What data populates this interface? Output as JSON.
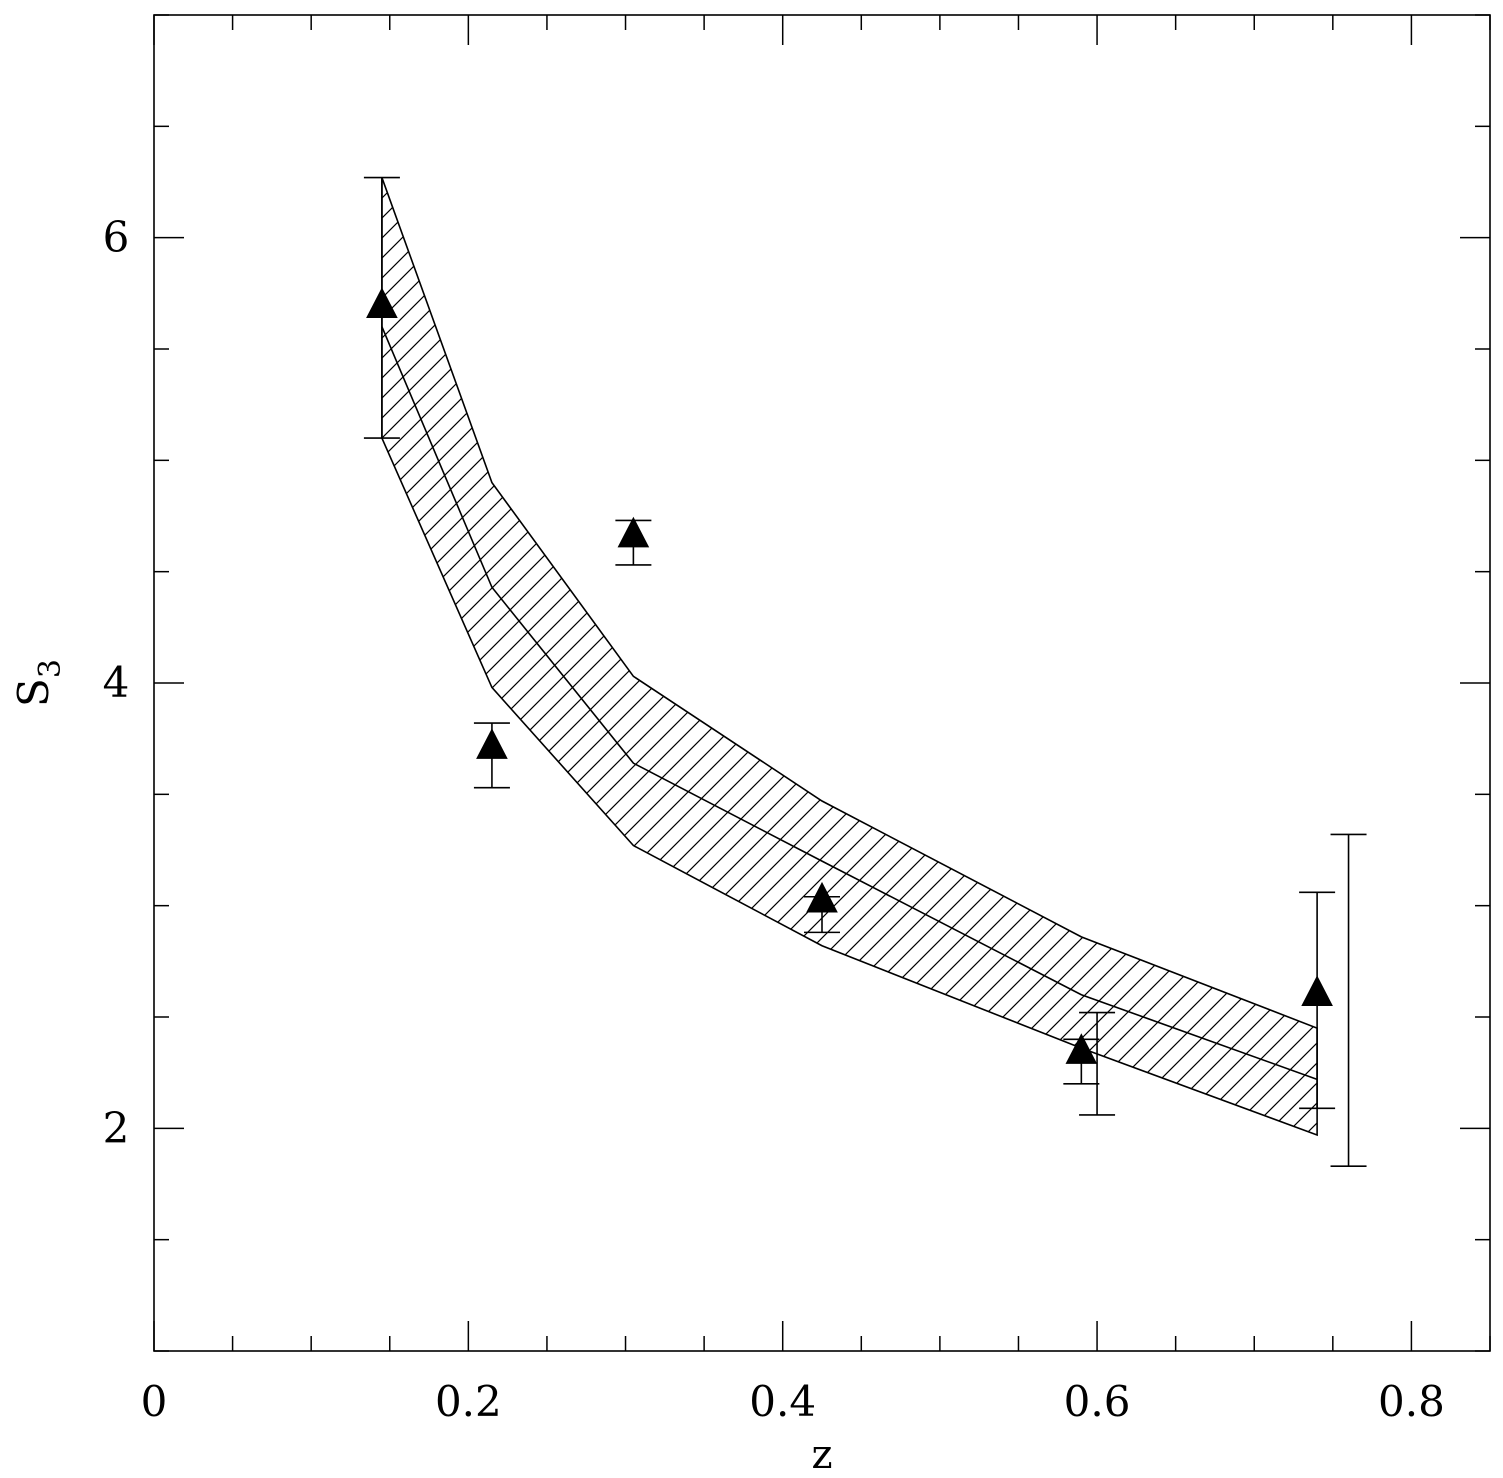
{
  "chart_data": {
    "type": "scatter",
    "title": "",
    "xlabel": "z",
    "ylabel": "S",
    "ylabel_subscript": "3",
    "xlim": [
      0,
      0.85
    ],
    "ylim": [
      1.0,
      7.0
    ],
    "x_ticks": [
      0,
      0.2,
      0.4,
      0.6,
      0.8
    ],
    "x_tick_labels": [
      "0",
      "0.2",
      "0.4",
      "0.6",
      "0.8"
    ],
    "x_minor_step": 0.05,
    "y_ticks": [
      2,
      4,
      6
    ],
    "y_tick_labels": [
      "2",
      "4",
      "6"
    ],
    "y_minor_step": 0.5,
    "grid": false,
    "band": {
      "x": [
        0.145,
        0.215,
        0.305,
        0.425,
        0.59,
        0.74
      ],
      "upper": [
        6.27,
        4.9,
        4.03,
        3.47,
        2.86,
        2.45
      ],
      "central": [
        5.6,
        4.43,
        3.64,
        3.2,
        2.6,
        2.22
      ],
      "lower": [
        5.1,
        3.98,
        3.27,
        2.82,
        2.36,
        1.97
      ]
    },
    "series": [
      {
        "marker": "filled-triangle",
        "x": [
          0.145,
          0.215,
          0.305,
          0.425,
          0.59,
          0.74
        ],
        "y": [
          5.7,
          3.72,
          4.67,
          3.03,
          2.35,
          2.61
        ],
        "yerr_low": [
          5.1,
          3.53,
          4.53,
          2.88,
          2.2,
          2.09
        ],
        "yerr_high": [
          6.27,
          3.82,
          4.73,
          3.04,
          2.4,
          3.06
        ]
      }
    ],
    "extra_error_bars": [
      {
        "x": 0.6,
        "low": 2.06,
        "high": 2.52
      },
      {
        "x": 0.76,
        "low": 1.83,
        "high": 3.32
      }
    ]
  }
}
